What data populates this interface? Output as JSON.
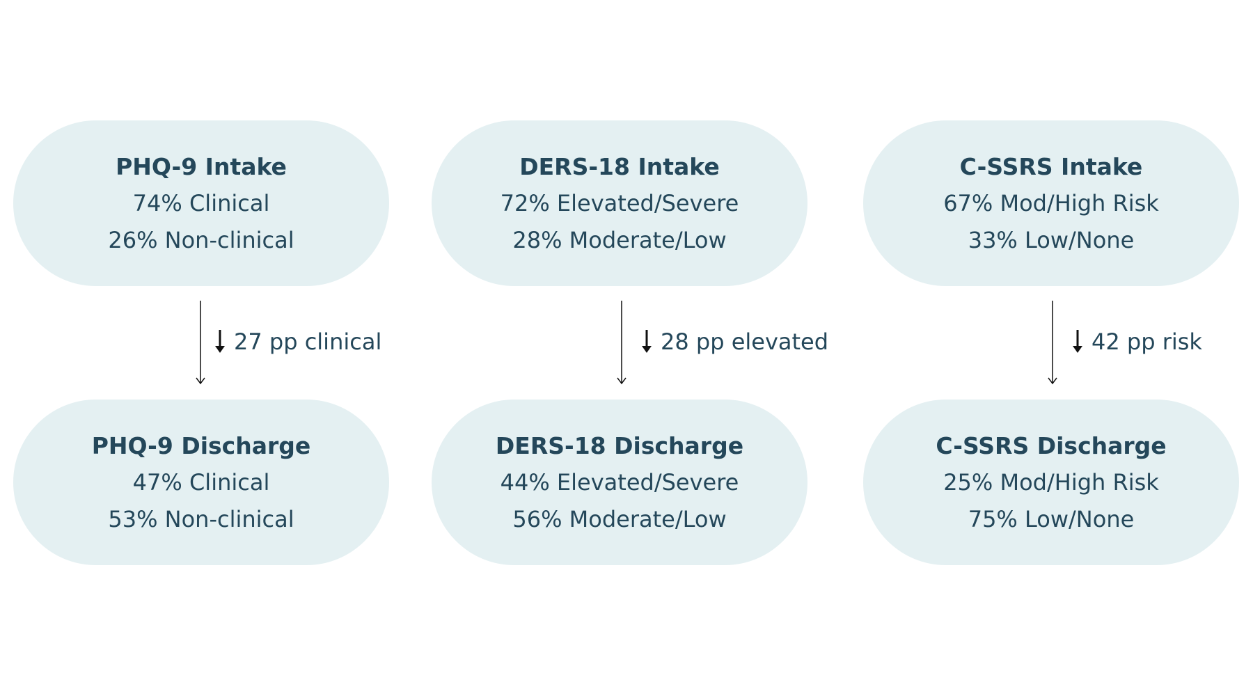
{
  "diagram": {
    "columns": [
      {
        "intake": {
          "title": "PHQ-9 Intake",
          "line1": "74% Clinical",
          "line2": "26% Non-clinical"
        },
        "change": "27 pp clinical",
        "discharge": {
          "title": "PHQ-9 Discharge",
          "line1": "47% Clinical",
          "line2": "53% Non-clinical"
        }
      },
      {
        "intake": {
          "title": "DERS-18 Intake",
          "line1": "72% Elevated/Severe",
          "line2": "28% Moderate/Low"
        },
        "change": "28 pp elevated",
        "discharge": {
          "title": "DERS-18 Discharge",
          "line1": "44% Elevated/Severe",
          "line2": "56% Moderate/Low"
        }
      },
      {
        "intake": {
          "title": "C-SSRS Intake",
          "line1": "67% Mod/High Risk",
          "line2": "33% Low/None"
        },
        "change": "42 pp risk",
        "discharge": {
          "title": "C-SSRS Discharge",
          "line1": "25% Mod/High Risk",
          "line2": "75% Low/None"
        }
      }
    ],
    "colors": {
      "node_fill": "#e4f0f2",
      "text": "#24475a",
      "arrow": "#111111"
    },
    "icons": {
      "change_indicator": "down-arrow-icon"
    }
  }
}
